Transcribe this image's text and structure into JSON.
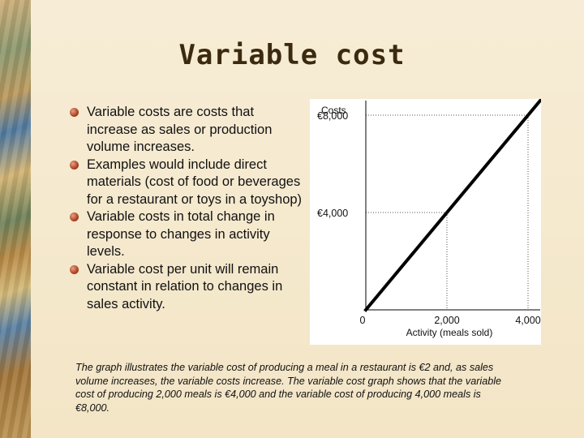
{
  "slide": {
    "title": "Variable cost",
    "bullets": [
      "Variable costs are costs that increase as sales or production volume increases.",
      "Examples would include direct materials (cost of food or beverages for a restaurant or toys in a toyshop)",
      "Variable costs in total change in response to changes in activity levels.",
      "Variable cost per unit will remain constant in relation to changes in sales activity."
    ],
    "caption": "The graph illustrates the variable cost of producing a meal in a restaurant is €2 and, as sales volume increases, the variable costs increase. The variable cost graph shows that the variable cost of producing 2,000 meals is €4,000 and the variable cost of producing 4,000 meals is €8,000."
  },
  "colors": {
    "bullet": "#b24a2a",
    "title": "#3b2a10",
    "line": "#000000",
    "gridline": "#555555"
  },
  "chart_data": {
    "type": "line",
    "ylabel": "Costs",
    "xlabel": "Activity (meals sold)",
    "x": [
      0,
      4300
    ],
    "series": [
      {
        "values": [
          0,
          8600
        ]
      }
    ],
    "reference_points": [
      {
        "x": 2000,
        "y": 4000
      },
      {
        "x": 4000,
        "y": 8000
      }
    ],
    "x_ticks": [
      {
        "value": 0,
        "label": "0"
      },
      {
        "value": 2000,
        "label": "2,000"
      },
      {
        "value": 4000,
        "label": "4,000"
      }
    ],
    "y_ticks": [
      {
        "value": 4000,
        "label": "€4,000"
      },
      {
        "value": 8000,
        "label": "€8,000"
      }
    ],
    "xlim": [
      0,
      4300
    ],
    "ylim": [
      0,
      8600
    ],
    "grid": false
  }
}
